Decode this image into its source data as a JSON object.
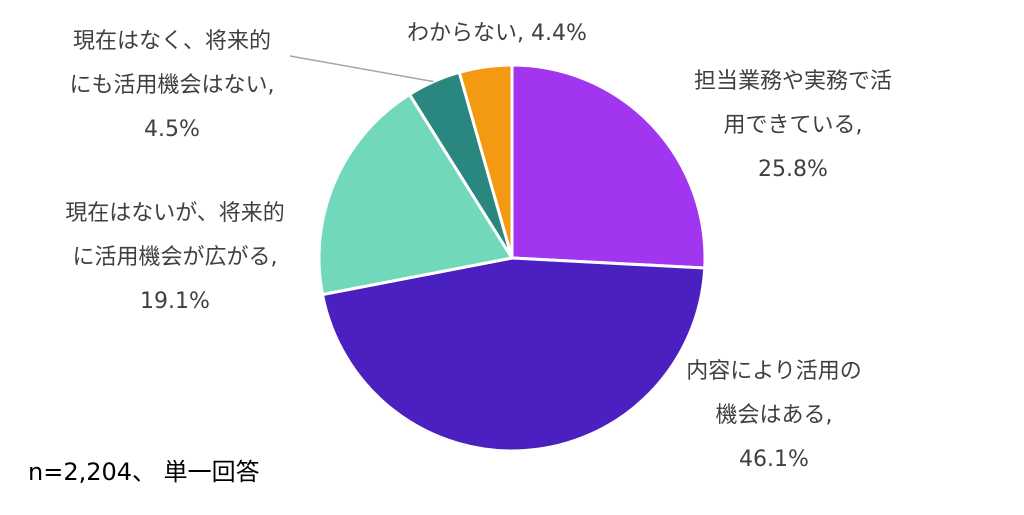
{
  "chart_data": {
    "type": "pie",
    "slices": [
      {
        "label_lines": [
          "担当業務や実務で活",
          "用できている,",
          "25.8%"
        ],
        "value": 25.8,
        "color": "#a235f0"
      },
      {
        "label_lines": [
          "内容により活用の",
          "機会はある,",
          "46.1%"
        ],
        "value": 46.1,
        "color": "#4a21c0"
      },
      {
        "label_lines": [
          "現在はないが、将来的",
          "に活用機会が広がる,",
          "19.1%"
        ],
        "value": 19.1,
        "color": "#72d8bb"
      },
      {
        "label_lines": [
          "現在はなく、将来的",
          "にも活用機会はない,",
          "4.5%"
        ],
        "value": 4.5,
        "color": "#2a8780"
      },
      {
        "label_lines": [
          "わからない, 4.4%"
        ],
        "value": 4.4,
        "color": "#f39a12"
      }
    ],
    "start_angle_deg": 0,
    "direction": "clockwise"
  },
  "note": "n=2,204、 単一回答"
}
